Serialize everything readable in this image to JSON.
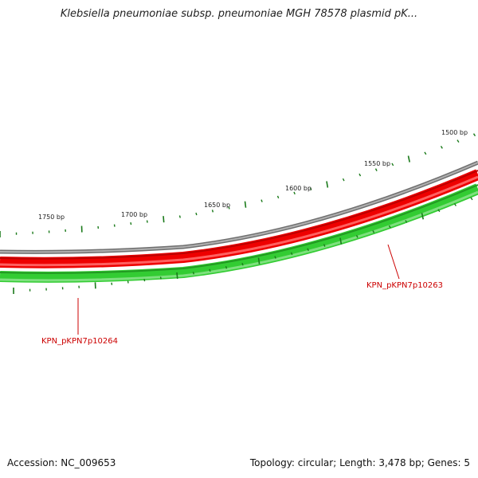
{
  "title": "Klebsiella pneumoniae subsp. pneumoniae MGH 78578 plasmid pK...",
  "accession": "Accession: NC_009653",
  "summary": "Topology: circular; Length: 3,478 bp; Genes: 5",
  "colors": {
    "backbone": "#8a8a8a",
    "reverse_strand": "#e00000",
    "forward_strand": "#22bb22",
    "ticks": "#1a7a1a",
    "gene_label": "#cc0000"
  },
  "scale_labels": [
    {
      "bp": 1500,
      "text": "1500 bp"
    },
    {
      "bp": 1550,
      "text": "1550 bp"
    },
    {
      "bp": 1600,
      "text": "1600 bp"
    },
    {
      "bp": 1650,
      "text": "1650 bp"
    },
    {
      "bp": 1700,
      "text": "1700 bp"
    },
    {
      "bp": 1750,
      "text": "1750 bp"
    }
  ],
  "genes": [
    {
      "id": "KPN_pKPN7p10263",
      "label": "KPN_pKPN7p10263"
    },
    {
      "id": "KPN_pKPN7p10264",
      "label": "KPN_pKPN7p10264"
    }
  ]
}
